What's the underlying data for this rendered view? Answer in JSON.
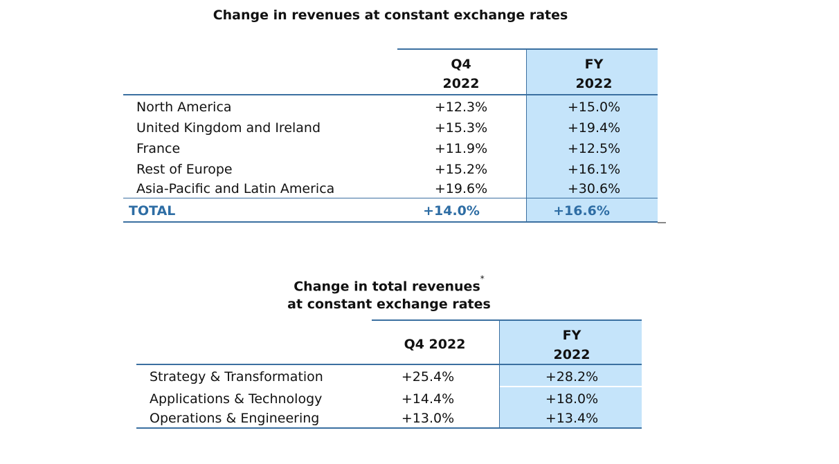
{
  "table1": {
    "title": "Change in revenues at constant exchange rates",
    "headers": {
      "q4": {
        "line1": "Q4",
        "line2": "2022"
      },
      "fy": {
        "line1": "FY",
        "line2": "2022"
      }
    },
    "rows": [
      {
        "label": "North America",
        "q4": "+12.3%",
        "fy": "+15.0%"
      },
      {
        "label": "United Kingdom and Ireland",
        "q4": "+15.3%",
        "fy": "+19.4%"
      },
      {
        "label": "France",
        "q4": "+11.9%",
        "fy": "+12.5%"
      },
      {
        "label": "Rest of Europe",
        "q4": "+15.2%",
        "fy": "+16.1%"
      },
      {
        "label": "Asia-Pacific and Latin America",
        "q4": "+19.6%",
        "fy": "+30.6%"
      }
    ],
    "total": {
      "label": "TOTAL",
      "q4": "+14.0%",
      "fy": "+16.6%"
    }
  },
  "table2": {
    "title_line1": "Change in total revenues",
    "title_mark": "*",
    "title_line2": "at constant exchange rates",
    "headers": {
      "q4": "Q4 2022",
      "fy": {
        "line1": "FY",
        "line2": "2022"
      }
    },
    "rows": [
      {
        "label": "Strategy & Transformation",
        "q4": "+25.4%",
        "fy": "+28.2%"
      },
      {
        "label": "Applications & Technology",
        "q4": "+14.4%",
        "fy": "+18.0%"
      },
      {
        "label": "Operations & Engineering",
        "q4": "+13.0%",
        "fy": "+13.4%"
      }
    ]
  }
}
